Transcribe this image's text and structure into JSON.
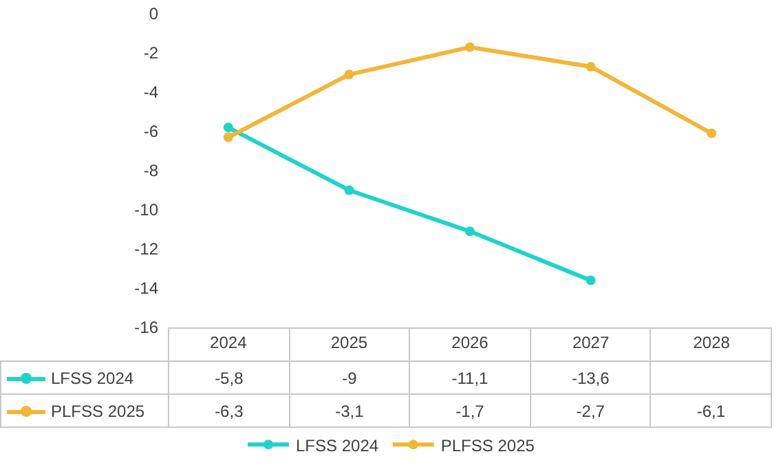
{
  "chart_data": {
    "type": "line",
    "categories": [
      "2024",
      "2025",
      "2026",
      "2027",
      "2028"
    ],
    "series": [
      {
        "name": "LFSS 2024",
        "color": "#1fd3cc",
        "values": [
          -5.8,
          -9,
          -11.1,
          -13.6,
          null
        ],
        "value_labels": [
          "-5,8",
          "-9",
          "-11,1",
          "-13,6",
          null
        ]
      },
      {
        "name": "PLFSS 2025",
        "color": "#f2b637",
        "values": [
          -6.3,
          -3.1,
          -1.7,
          -2.7,
          -6.1
        ],
        "value_labels": [
          "-6,3",
          "-3,1",
          "-1,7",
          "-2,7",
          "-6,1"
        ]
      }
    ],
    "ylim": [
      -16,
      0
    ],
    "yticks": [
      -16,
      -14,
      -12,
      -10,
      -8,
      -6,
      -4,
      -2,
      0
    ],
    "grid": false,
    "legend": "bottom",
    "marker": "circle",
    "line_style": "solid"
  }
}
